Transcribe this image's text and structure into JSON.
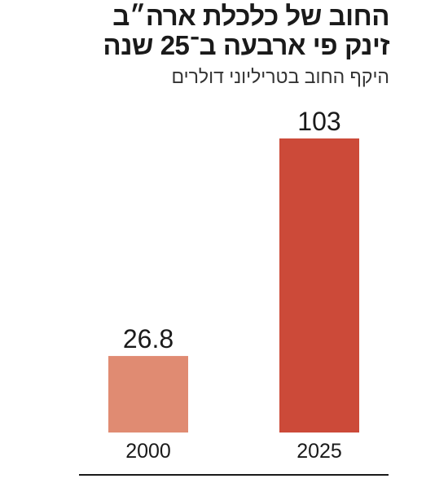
{
  "chart_data": {
    "type": "bar",
    "title": [
      "החוב של כלכלת ארה״ב",
      "זינק פי ארבעה ב־25 שנה"
    ],
    "subtitle": "היקף החוב בטריליוני דולרים",
    "categories": [
      "2000",
      "2025"
    ],
    "values": [
      26.8,
      103
    ],
    "colors": [
      "#e08b72",
      "#cc4a39"
    ]
  }
}
